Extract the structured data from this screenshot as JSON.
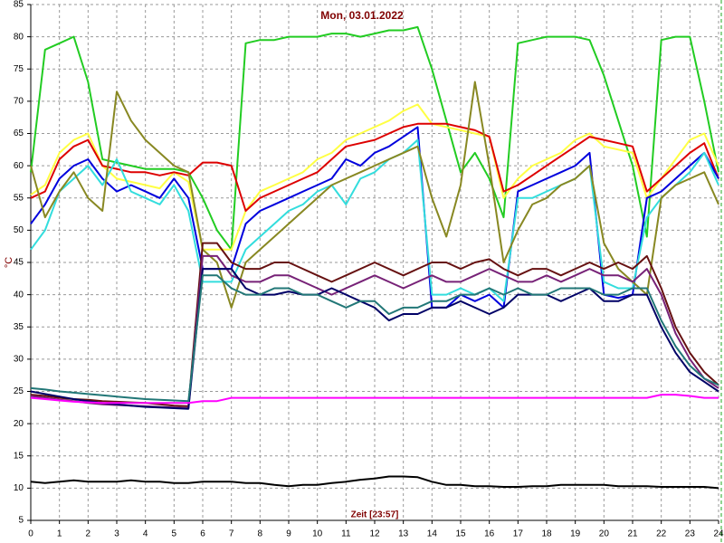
{
  "chart_data": {
    "type": "line",
    "title": "Mon, 03.01.2022",
    "xlabel": "Zeit [23:57]",
    "ylabel": "°C",
    "grid": true,
    "xlim": [
      0,
      24
    ],
    "xticks": [
      0,
      1,
      2,
      3,
      4,
      5,
      6,
      7,
      8,
      9,
      10,
      11,
      12,
      13,
      14,
      15,
      16,
      17,
      18,
      19,
      20,
      21,
      22,
      23,
      24
    ],
    "ylim": [
      5,
      85
    ],
    "yticks": [
      5,
      10,
      15,
      20,
      25,
      30,
      35,
      40,
      45,
      50,
      55,
      60,
      65,
      70,
      75,
      80,
      85
    ],
    "x": [
      0,
      0.5,
      1,
      1.5,
      2,
      2.5,
      3,
      3.5,
      4,
      4.5,
      5,
      5.5,
      6,
      6.5,
      7,
      7.5,
      8,
      8.5,
      9,
      9.5,
      10,
      10.5,
      11,
      11.5,
      12,
      12.5,
      13,
      13.5,
      14,
      14.5,
      15,
      15.5,
      16,
      16.5,
      17,
      17.5,
      18,
      18.5,
      19,
      19.5,
      20,
      20.5,
      21,
      21.5,
      22,
      22.5,
      23,
      23.5,
      24
    ],
    "series": [
      {
        "color": "#22cc22",
        "values": [
          59,
          78,
          79,
          80,
          73,
          61,
          60.5,
          60,
          59.5,
          59.5,
          59.5,
          59,
          55,
          50,
          47,
          79,
          79.5,
          79.5,
          80,
          80,
          80,
          80.5,
          80.5,
          80,
          80.5,
          81,
          81,
          81.5,
          75,
          67,
          59,
          62,
          58,
          52,
          79,
          79.5,
          80,
          80,
          80,
          79.5,
          74,
          67,
          60,
          49,
          79.5,
          80,
          80,
          70,
          59
        ]
      },
      {
        "color": "#ffff44",
        "values": [
          55.5,
          57,
          62,
          64,
          65,
          60,
          58,
          57.5,
          57,
          56.5,
          59,
          57.5,
          47,
          47,
          47,
          53,
          56,
          57,
          58,
          59,
          61,
          62,
          64,
          65,
          66,
          67,
          68.5,
          69.5,
          66.5,
          66,
          65.5,
          65,
          64.5,
          55,
          58,
          60,
          61,
          62,
          64,
          65,
          63,
          62.5,
          62,
          55,
          58,
          61,
          64,
          65,
          60
        ]
      },
      {
        "color": "#dd0000",
        "values": [
          55,
          56,
          61,
          63,
          64,
          60,
          59.5,
          59,
          59,
          58.5,
          59,
          58.5,
          60.5,
          60.5,
          60,
          53,
          55,
          56,
          57,
          58,
          59,
          61,
          63,
          63.5,
          64,
          65,
          66,
          66.5,
          66.5,
          66.5,
          66,
          65.5,
          64.5,
          56,
          57,
          58.5,
          60,
          61.5,
          63,
          64.5,
          64,
          63.5,
          63,
          56,
          58,
          60,
          62,
          63.5,
          58
        ]
      },
      {
        "color": "#0000dd",
        "values": [
          51,
          54,
          58,
          60,
          61,
          58,
          56,
          57,
          56,
          55,
          58,
          55,
          44,
          44,
          44,
          51,
          53,
          54,
          55,
          56,
          57,
          58,
          61,
          60,
          62,
          63,
          64.5,
          66,
          38,
          38,
          40,
          39,
          40,
          38,
          56,
          57,
          58,
          59,
          60,
          62,
          40,
          39.5,
          40,
          55,
          56,
          58,
          60,
          62,
          58
        ]
      },
      {
        "color": "#33dddd",
        "values": [
          47,
          50,
          56,
          58,
          60,
          57,
          61,
          56,
          55,
          54,
          57,
          53,
          42,
          42,
          42,
          47,
          49,
          51,
          53,
          54,
          56,
          57,
          54,
          58,
          59,
          61,
          62,
          64,
          40,
          40,
          41,
          40,
          41,
          39,
          55,
          55,
          56,
          57,
          58,
          60,
          42,
          41,
          41,
          52,
          55,
          57,
          59,
          62,
          57
        ]
      },
      {
        "color": "#888822",
        "values": [
          60,
          52,
          56,
          59,
          55,
          53,
          71.5,
          67,
          64,
          62,
          60,
          59,
          47,
          45,
          38,
          45,
          47,
          49,
          51,
          53,
          55,
          57,
          58,
          59,
          60,
          61,
          62,
          63,
          55,
          49,
          57,
          73,
          60,
          45,
          50,
          54,
          55,
          57,
          58,
          60,
          48,
          44,
          42,
          40,
          55,
          57,
          58,
          59,
          54
        ]
      },
      {
        "color": "#661111",
        "values": [
          24.5,
          24.3,
          24,
          23.8,
          23.7,
          23.5,
          23.4,
          23.3,
          23.2,
          23,
          22.8,
          22.7,
          48,
          48,
          45,
          44,
          44,
          45,
          45,
          44,
          43,
          42,
          43,
          44,
          45,
          44,
          43,
          44,
          45,
          45,
          44,
          45,
          45.5,
          44,
          43,
          44,
          44,
          43,
          44,
          45,
          44,
          45,
          44,
          46,
          41,
          35,
          31,
          28,
          26
        ]
      },
      {
        "color": "#772277",
        "values": [
          24.3,
          24,
          23.7,
          23.5,
          23.2,
          23,
          22.9,
          22.8,
          22.7,
          22.6,
          22.5,
          22.4,
          46,
          46,
          43,
          42,
          42,
          43,
          43,
          42,
          41,
          40,
          41,
          42,
          43,
          42,
          41,
          42,
          43,
          42,
          42,
          43,
          44,
          43,
          42,
          42,
          43,
          42,
          43,
          44,
          43,
          43,
          42,
          44,
          40,
          34,
          30,
          27,
          25.5
        ]
      },
      {
        "color": "#000066",
        "values": [
          25,
          24.6,
          24.2,
          23.8,
          23.5,
          23.2,
          23,
          22.8,
          22.6,
          22.5,
          22.4,
          22.3,
          44,
          44,
          44,
          41,
          40,
          40,
          40.5,
          40,
          40,
          41,
          40,
          39,
          38,
          36,
          37,
          37,
          38,
          38,
          39,
          38,
          37,
          38,
          40,
          40,
          40,
          39,
          40,
          41,
          39,
          39,
          40,
          40,
          35,
          31,
          28,
          26.5,
          25
        ]
      },
      {
        "color": "#227777",
        "values": [
          25.5,
          25.3,
          25,
          24.8,
          24.6,
          24.4,
          24.2,
          24,
          23.8,
          23.7,
          23.6,
          23.5,
          43,
          43,
          41,
          40,
          40,
          41,
          41,
          40,
          40,
          39,
          38,
          39,
          39,
          37,
          38,
          38,
          39,
          39,
          40,
          40,
          41,
          40,
          41,
          40,
          40,
          41,
          41,
          41,
          40,
          40,
          41,
          41,
          36,
          32,
          29,
          27,
          26
        ]
      },
      {
        "color": "#ff00ff",
        "values": [
          24,
          23.8,
          23.6,
          23.4,
          23.3,
          23.2,
          23.2,
          23.2,
          23.2,
          23.2,
          23.2,
          23.2,
          23.5,
          23.5,
          24,
          24,
          24,
          24,
          24,
          24,
          24,
          24,
          24,
          24,
          24,
          24,
          24,
          24,
          24,
          24,
          24,
          24,
          24,
          24,
          24,
          24,
          24,
          24,
          24,
          24,
          24,
          24,
          24,
          24,
          24.5,
          24.5,
          24.3,
          24,
          24
        ]
      },
      {
        "color": "#000000",
        "values": [
          11,
          10.8,
          11,
          11.2,
          11,
          11,
          11,
          11.2,
          11,
          11,
          10.8,
          10.8,
          11,
          11,
          11,
          10.8,
          10.8,
          10.5,
          10.3,
          10.5,
          10.5,
          10.8,
          11,
          11.3,
          11.5,
          11.8,
          11.8,
          11.7,
          11,
          10.5,
          10.5,
          10.3,
          10.3,
          10.2,
          10.2,
          10.3,
          10.3,
          10.5,
          10.5,
          10.5,
          10.5,
          10.3,
          10.3,
          10.3,
          10.2,
          10.2,
          10.2,
          10.2,
          10
        ]
      }
    ]
  }
}
